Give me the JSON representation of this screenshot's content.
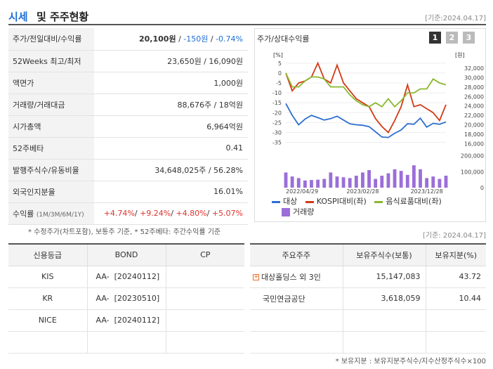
{
  "header": {
    "title_blue": "시세",
    "title_rest": "및 주주현황",
    "date": "[기준:2024.04.17]"
  },
  "quote_rows": [
    {
      "label": "주가/전일대비/수익률",
      "price": "20,100원",
      "chg": "-150원",
      "pct": "-0.74%"
    },
    {
      "label": "52Weeks 최고/최저",
      "value": "23,650원 / 16,090원"
    },
    {
      "label": "액면가",
      "value": "1,000원"
    },
    {
      "label": "거래량/거래대금",
      "value": "88,676주 / 18억원"
    },
    {
      "label": "시가총액",
      "value": "6,964억원"
    },
    {
      "label": "52주베타",
      "value": "0.41"
    },
    {
      "label": "발행주식수/유동비율",
      "value": "34,648,025주 / 56.28%"
    },
    {
      "label": "외국인지분율",
      "value": "16.01%"
    },
    {
      "label": "수익률",
      "label_sub": "(1M/3M/6M/1Y)",
      "r1": "+4.74%",
      "r2": "+9.24%",
      "r3": "+4.80%",
      "r4": "+5.07%"
    }
  ],
  "note1": "* 수정주가(차트포함), 보통주 기준, * 52주베타: 주간수익률 기준",
  "chart_panel": {
    "title": "주가/상대수익률",
    "buttons": [
      "1",
      "2",
      "3"
    ],
    "left_unit": "[%]",
    "right_unit": "[원]",
    "legend": [
      "대상",
      "KOSPI대비(좌)",
      "음식료품대비(좌)",
      "거래량"
    ]
  },
  "chart_data": {
    "type": "line",
    "x_ticks": [
      "2022/04/29",
      "2023/02/28",
      "2023/12/28"
    ],
    "left_axis": {
      "ticks": [
        "5",
        "0",
        "-5",
        "-10",
        "-15",
        "-20",
        "-25",
        "-30",
        "-35"
      ],
      "ylim": [
        -38,
        6
      ]
    },
    "right_axis": {
      "ticks": [
        "32,000",
        "30,000",
        "28,000",
        "26,000",
        "24,000",
        "22,000",
        "20,000",
        "18,000",
        "16,000"
      ],
      "ylim": [
        15000,
        33500
      ]
    },
    "volume_axis": {
      "ticks": [
        "200,000",
        "100,000",
        "0"
      ],
      "ylim": [
        0,
        220000
      ]
    },
    "series": [
      {
        "name": "대상",
        "color": "#2e6fd1",
        "axis": "right",
        "values": [
          24500,
          22000,
          20000,
          21200,
          22000,
          21500,
          21000,
          21300,
          21800,
          21000,
          20200,
          20000,
          19900,
          19600,
          18500,
          17400,
          17300,
          18200,
          18900,
          20200,
          20100,
          21400,
          19500,
          20300,
          20100,
          20600
        ]
      },
      {
        "name": "KOSPI대비(좌)",
        "color": "#d23a16",
        "axis": "left",
        "values": [
          0,
          -9,
          -5,
          -4,
          -2,
          5,
          -3,
          -5,
          4,
          -5,
          -9,
          -13,
          -15,
          -17,
          -23,
          -27,
          -30,
          -24,
          -17,
          -6,
          -17,
          -16,
          -18,
          -20,
          -24,
          -16
        ]
      },
      {
        "name": "음식료품대비(좌)",
        "color": "#8ab82e",
        "axis": "left",
        "values": [
          0,
          -7,
          -7,
          -4,
          -2,
          -2,
          -3,
          -7,
          -7,
          -7,
          -11,
          -14,
          -16,
          -17,
          -15,
          -17,
          -13,
          -17,
          -14,
          -10,
          -10,
          -8,
          -8,
          -3,
          -5,
          -6
        ]
      },
      {
        "name": "거래량",
        "color": "#9b6ed9",
        "axis": "volume",
        "values": [
          95000,
          70000,
          60000,
          45000,
          48000,
          50000,
          55000,
          95000,
          70000,
          65000,
          60000,
          75000,
          95000,
          110000,
          55000,
          75000,
          90000,
          115000,
          105000,
          80000,
          140000,
          115000,
          60000,
          70000,
          55000,
          75000
        ]
      }
    ]
  },
  "date2": "[기준: 2024.04.17]",
  "credit": {
    "headers": [
      "신용등급",
      "BOND",
      "CP"
    ],
    "rows": [
      {
        "agency": "KIS",
        "bond": "AA-  [20240112]",
        "cp": ""
      },
      {
        "agency": "KR",
        "bond": "AA-  [20230510]",
        "cp": ""
      },
      {
        "agency": "NICE",
        "bond": "AA-  [20240112]",
        "cp": ""
      }
    ]
  },
  "holders": {
    "headers": [
      "주요주주",
      "보유주식수(보통)",
      "보유지분(%)"
    ],
    "rows": [
      {
        "name": "대상홀딩스 외 3인",
        "shares": "15,147,083",
        "pct": "43.72",
        "expand": "+"
      },
      {
        "name": "국민연금공단",
        "shares": "3,618,059",
        "pct": "10.44",
        "expand": ""
      }
    ]
  },
  "note2": "* 보유지분 : 보유지분주식수/지수산정주식수×100"
}
